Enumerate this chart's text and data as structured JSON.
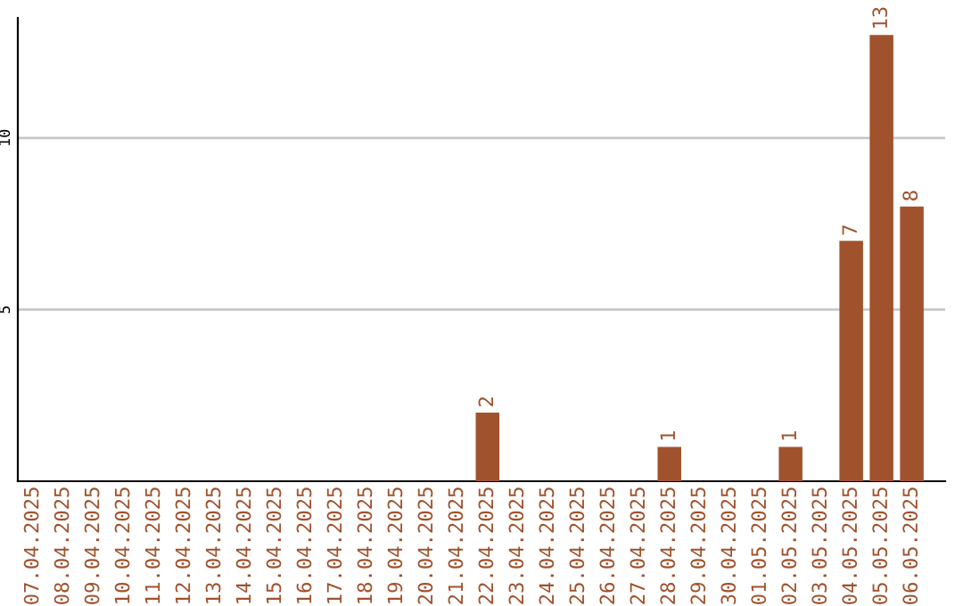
{
  "chart_data": {
    "type": "bar",
    "categories": [
      "07.04.2025",
      "08.04.2025",
      "09.04.2025",
      "10.04.2025",
      "11.04.2025",
      "12.04.2025",
      "13.04.2025",
      "14.04.2025",
      "15.04.2025",
      "16.04.2025",
      "17.04.2025",
      "18.04.2025",
      "19.04.2025",
      "20.04.2025",
      "21.04.2025",
      "22.04.2025",
      "23.04.2025",
      "24.04.2025",
      "25.04.2025",
      "26.04.2025",
      "27.04.2025",
      "28.04.2025",
      "29.04.2025",
      "30.04.2025",
      "01.05.2025",
      "02.05.2025",
      "03.05.2025",
      "04.05.2025",
      "05.05.2025",
      "06.05.2025"
    ],
    "values": [
      0,
      0,
      0,
      0,
      0,
      0,
      0,
      0,
      0,
      0,
      0,
      0,
      0,
      0,
      0,
      2,
      0,
      0,
      0,
      0,
      0,
      1,
      0,
      0,
      0,
      1,
      0,
      7,
      13,
      8
    ],
    "value_labels": [
      null,
      null,
      null,
      null,
      null,
      null,
      null,
      null,
      null,
      null,
      null,
      null,
      null,
      null,
      null,
      "2",
      null,
      null,
      null,
      null,
      null,
      "1",
      null,
      null,
      null,
      "1",
      null,
      "7",
      "13",
      "8"
    ],
    "color": "#a0522d",
    "ylim": [
      0,
      13.5
    ],
    "yticks": [
      5,
      10
    ],
    "grid": "y"
  }
}
